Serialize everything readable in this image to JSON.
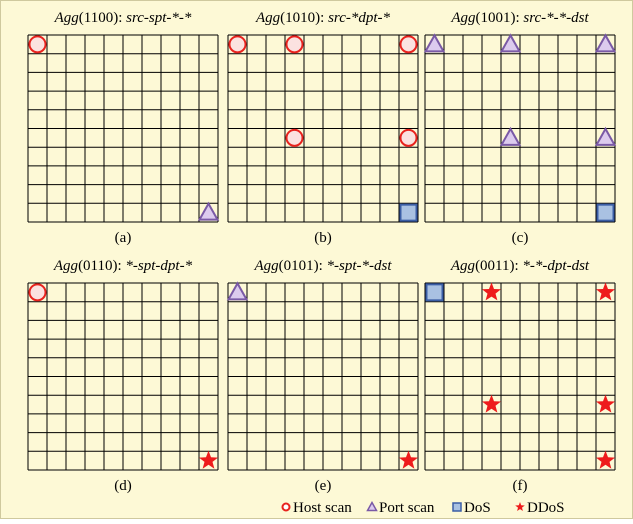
{
  "panels": [
    {
      "agg": "Agg",
      "code": "(1100): ",
      "pattern": "src-spt-*-*",
      "caption": "(a)"
    },
    {
      "agg": "Agg",
      "code": "(1010): ",
      "pattern": "src-*dpt-*",
      "caption": "(b)"
    },
    {
      "agg": "Agg",
      "code": "(1001): ",
      "pattern": "src-*-*-dst",
      "caption": "(c)"
    },
    {
      "agg": "Agg",
      "code": "(0110): ",
      "pattern": "*-spt-dpt-*",
      "caption": "(d)"
    },
    {
      "agg": "Agg",
      "code": "(0101): ",
      "pattern": "*-spt-*-dst",
      "caption": "(e)"
    },
    {
      "agg": "Agg",
      "code": "(0011): ",
      "pattern": "*-*-dpt-dst",
      "caption": "(f)"
    }
  ],
  "legend": [
    "Host scan",
    "Port scan",
    "DoS",
    "DDoS"
  ]
}
